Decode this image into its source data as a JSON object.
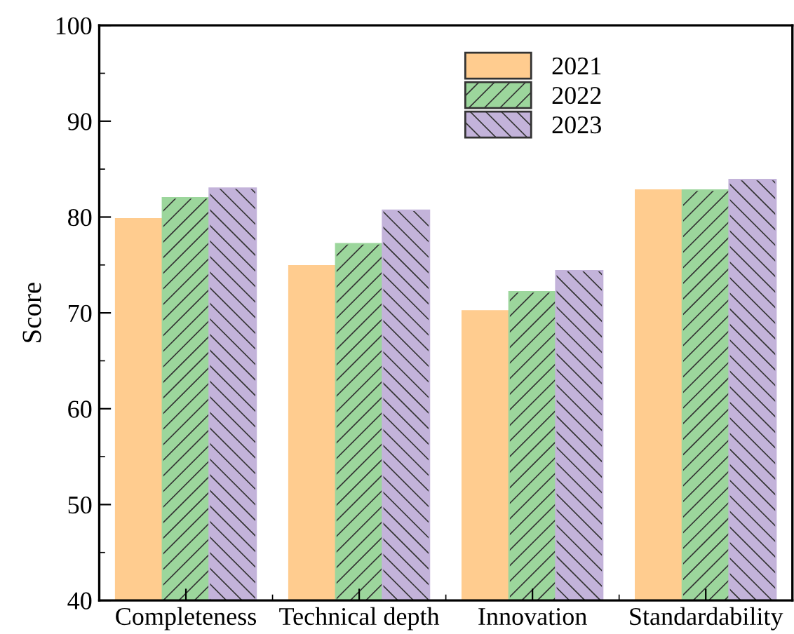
{
  "chart_data": {
    "type": "bar",
    "categories": [
      "Completeness",
      "Technical depth",
      "Innovation",
      "Standardability"
    ],
    "series": [
      {
        "name": "2021",
        "color": "#ffcc8f",
        "values": [
          79.8,
          74.9,
          70.2,
          82.8
        ]
      },
      {
        "name": "2022",
        "color": "#9cd69c",
        "values": [
          82.0,
          77.2,
          72.2,
          82.8
        ]
      },
      {
        "name": "2023",
        "color": "#c3b3da",
        "values": [
          83.0,
          80.7,
          74.4,
          83.9
        ]
      }
    ],
    "ylabel": "Score",
    "ylim": [
      40,
      100
    ],
    "yticks": [
      40,
      50,
      60,
      70,
      80,
      90,
      100
    ],
    "grid": false,
    "legend": "top right"
  }
}
